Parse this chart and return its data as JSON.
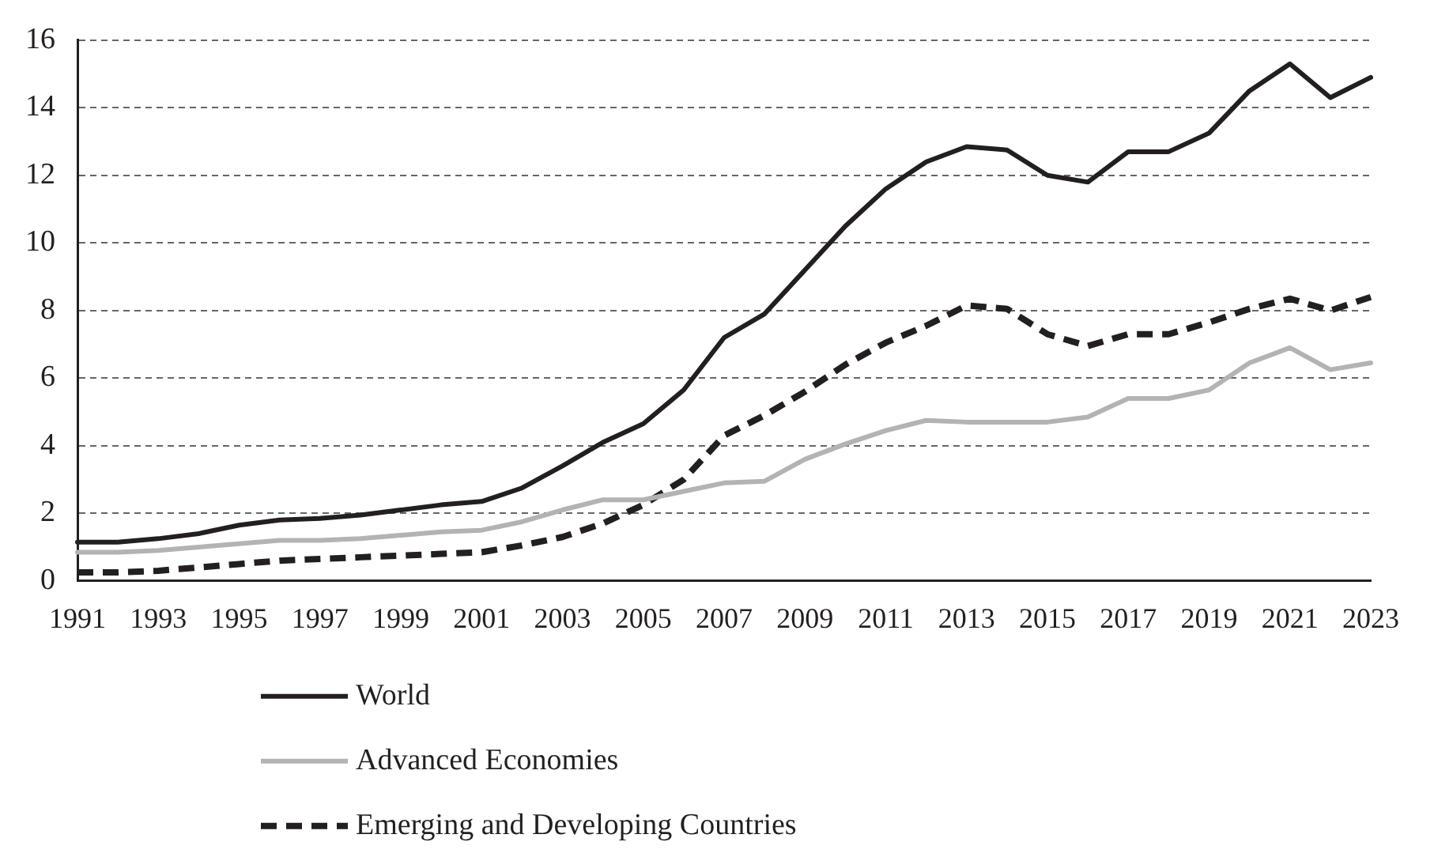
{
  "chart_data": {
    "type": "line",
    "categories": [
      "1991",
      null,
      "1993",
      null,
      "1995",
      null,
      "1997",
      null,
      "1999",
      null,
      "2001",
      null,
      "2003",
      null,
      "2005",
      null,
      "2007",
      null,
      "2009",
      null,
      "2011",
      null,
      "2013",
      null,
      "2015",
      null,
      "2017",
      null,
      "2019",
      null,
      "2021",
      null,
      "2023"
    ],
    "series": [
      {
        "name": "World",
        "color": "#231f20",
        "line_style": "solid",
        "values": [
          1.15,
          1.15,
          1.25,
          1.4,
          1.65,
          1.8,
          1.85,
          1.95,
          2.1,
          2.25,
          2.35,
          2.75,
          3.4,
          4.1,
          4.65,
          5.65,
          7.2,
          7.9,
          9.2,
          10.5,
          11.6,
          12.4,
          12.85,
          12.75,
          12.0,
          11.8,
          12.7,
          12.7,
          13.25,
          14.5,
          15.3,
          14.3,
          14.9
        ]
      },
      {
        "name": "Advanced Economies",
        "color": "#b3b3b3",
        "line_style": "solid",
        "values": [
          0.85,
          0.85,
          0.9,
          1.0,
          1.1,
          1.2,
          1.2,
          1.25,
          1.35,
          1.45,
          1.5,
          1.75,
          2.1,
          2.4,
          2.4,
          2.65,
          2.9,
          2.95,
          3.6,
          4.05,
          4.45,
          4.75,
          4.7,
          4.7,
          4.7,
          4.85,
          5.4,
          5.4,
          5.65,
          6.45,
          6.9,
          6.25,
          6.45
        ]
      },
      {
        "name": "Emerging and Developing Countries",
        "color": "#231f20",
        "line_style": "dashed",
        "values": [
          0.25,
          0.25,
          0.3,
          0.4,
          0.5,
          0.6,
          0.65,
          0.7,
          0.75,
          0.8,
          0.85,
          1.05,
          1.3,
          1.7,
          2.25,
          3.0,
          4.3,
          4.9,
          5.6,
          6.4,
          7.05,
          7.55,
          8.15,
          8.05,
          7.3,
          6.95,
          7.3,
          7.3,
          7.65,
          8.05,
          8.35,
          8.0,
          8.4
        ]
      }
    ],
    "ylim": [
      0,
      16
    ],
    "yticks": [
      0,
      2,
      4,
      6,
      8,
      10,
      12,
      14,
      16
    ],
    "grid": "y",
    "legend": "bottom",
    "marker": "none"
  }
}
